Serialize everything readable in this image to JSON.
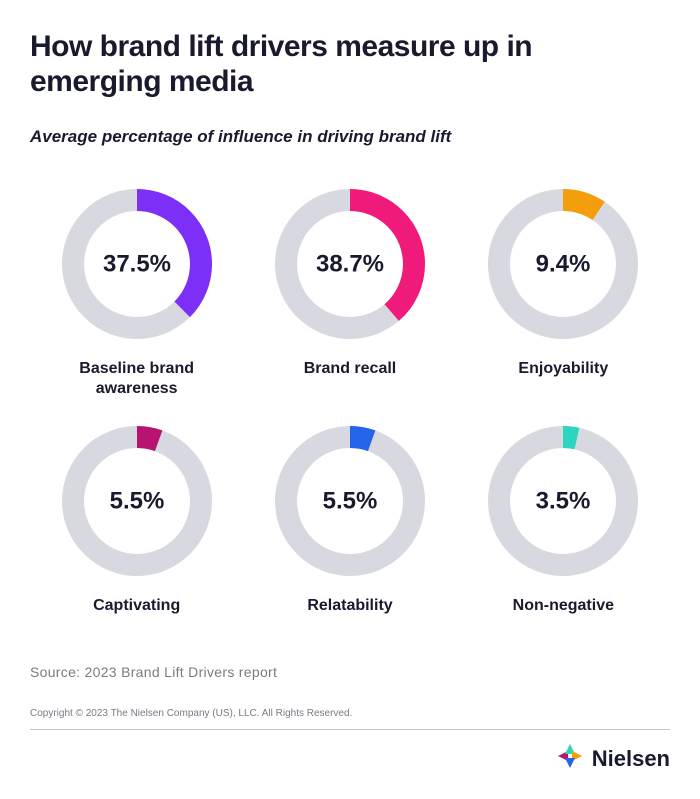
{
  "title": "How brand lift drivers measure up in emerging media",
  "subtitle": "Average percentage of influence in driving brand lift",
  "chart": {
    "type": "donut-grid",
    "ring_bg_color": "#d8d8e0",
    "ring_thickness": 22,
    "outer_radius": 75,
    "background_color": "#ffffff",
    "value_fontsize": 24,
    "label_fontsize": 16,
    "label_fontweight": 700,
    "items": [
      {
        "label": "Baseline brand awareness",
        "value": 37.5,
        "display": "37.5%",
        "color": "#7b2ff7"
      },
      {
        "label": "Brand recall",
        "value": 38.7,
        "display": "38.7%",
        "color": "#ef1a7a"
      },
      {
        "label": "Enjoyability",
        "value": 9.4,
        "display": "9.4%",
        "color": "#f59e0b"
      },
      {
        "label": "Captivating",
        "value": 5.5,
        "display": "5.5%",
        "color": "#b91372"
      },
      {
        "label": "Relatability",
        "value": 5.5,
        "display": "5.5%",
        "color": "#2563eb"
      },
      {
        "label": "Non-negative",
        "value": 3.5,
        "display": "3.5%",
        "color": "#2dd4bf"
      }
    ]
  },
  "source": "Source: 2023 Brand Lift Drivers report",
  "copyright": "Copyright © 2023 The Nielsen Company (US), LLC. All Rights Reserved.",
  "logo": {
    "text": "Nielsen",
    "mark_colors": {
      "left": "#b91372",
      "top": "#2dd4bf",
      "right": "#f59e0b",
      "bottom": "#2563eb"
    }
  }
}
